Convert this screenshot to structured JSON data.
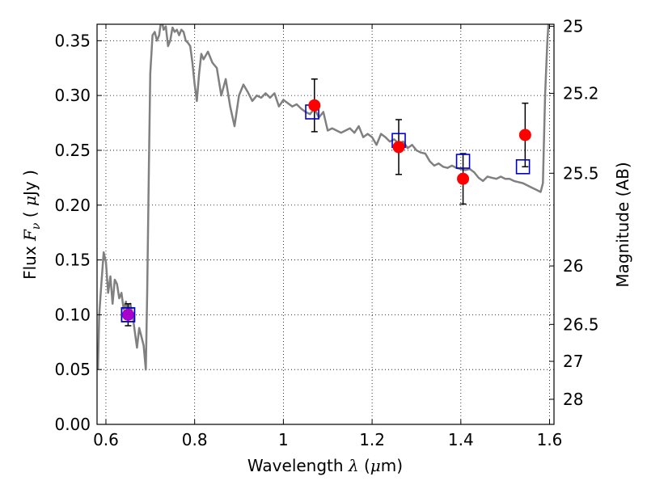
{
  "chart_data": {
    "type": "scatter",
    "xlabel": "Wavelength  λ (μm)",
    "xlabel_parts": {
      "pre": "Wavelength  ",
      "sym": "λ",
      "post": " (",
      "mu": "μ",
      "unit": "m)"
    },
    "ylabel": "Flux  Fν  ( μJy )",
    "ylabel_parts": {
      "pre": "Flux  ",
      "sym": "F",
      "sub": "ν",
      "mid": "  ( ",
      "mu": "μ",
      "unit": "Jy )"
    },
    "y2label": "Magnitude (AB)",
    "xlim": [
      0.58,
      1.61
    ],
    "ylim": [
      0.0,
      0.365
    ],
    "xticks": [
      0.6,
      0.8,
      1.0,
      1.2,
      1.4,
      1.6
    ],
    "xtick_labels": [
      "0.6",
      "0.8",
      "1",
      "1.2",
      "1.4",
      "1.6"
    ],
    "yticks": [
      0.0,
      0.05,
      0.1,
      0.15,
      0.2,
      0.25,
      0.3,
      0.35
    ],
    "ytick_labels": [
      "0.00",
      "0.05",
      "0.10",
      "0.15",
      "0.20",
      "0.25",
      "0.30",
      "0.35"
    ],
    "y2ticks": [
      {
        "label": "25",
        "flux": 0.3631
      },
      {
        "label": "25.2",
        "flux": 0.302
      },
      {
        "label": "25.5",
        "flux": 0.2291
      },
      {
        "label": "26",
        "flux": 0.1445
      },
      {
        "label": "26.5",
        "flux": 0.0912
      },
      {
        "label": "27",
        "flux": 0.0575
      },
      {
        "label": "28",
        "flux": 0.0229
      }
    ],
    "grid": true,
    "grid_style": "dotted",
    "colors": {
      "model": "#808080",
      "observed": "#ff0000",
      "synthetic": "#0000cc",
      "blend": "#aa00cc",
      "errorbar": "#000000"
    },
    "model_sed": {
      "x": [
        0.582,
        0.585,
        0.59,
        0.595,
        0.6,
        0.605,
        0.61,
        0.615,
        0.62,
        0.625,
        0.63,
        0.635,
        0.64,
        0.645,
        0.65,
        0.655,
        0.66,
        0.665,
        0.67,
        0.675,
        0.68,
        0.685,
        0.69,
        0.693,
        0.697,
        0.7,
        0.705,
        0.71,
        0.715,
        0.72,
        0.725,
        0.73,
        0.735,
        0.74,
        0.745,
        0.75,
        0.755,
        0.76,
        0.765,
        0.77,
        0.775,
        0.78,
        0.785,
        0.79,
        0.795,
        0.8,
        0.805,
        0.81,
        0.815,
        0.82,
        0.83,
        0.84,
        0.85,
        0.86,
        0.87,
        0.88,
        0.89,
        0.9,
        0.91,
        0.92,
        0.93,
        0.94,
        0.95,
        0.96,
        0.97,
        0.98,
        0.99,
        1.0,
        1.01,
        1.02,
        1.03,
        1.04,
        1.05,
        1.06,
        1.07,
        1.08,
        1.09,
        1.1,
        1.11,
        1.12,
        1.13,
        1.14,
        1.15,
        1.16,
        1.17,
        1.18,
        1.19,
        1.2,
        1.21,
        1.22,
        1.23,
        1.24,
        1.25,
        1.26,
        1.27,
        1.28,
        1.29,
        1.3,
        1.31,
        1.32,
        1.33,
        1.34,
        1.35,
        1.36,
        1.37,
        1.38,
        1.39,
        1.4,
        1.41,
        1.42,
        1.43,
        1.44,
        1.45,
        1.46,
        1.47,
        1.48,
        1.49,
        1.5,
        1.51,
        1.52,
        1.53,
        1.54,
        1.55,
        1.56,
        1.57,
        1.58,
        1.585,
        1.59,
        1.595,
        1.6
      ],
      "y": [
        0.05,
        0.1,
        0.13,
        0.157,
        0.148,
        0.12,
        0.135,
        0.11,
        0.132,
        0.128,
        0.115,
        0.12,
        0.105,
        0.112,
        0.095,
        0.11,
        0.1,
        0.085,
        0.07,
        0.088,
        0.08,
        0.072,
        0.05,
        0.12,
        0.24,
        0.32,
        0.355,
        0.358,
        0.35,
        0.355,
        0.37,
        0.36,
        0.363,
        0.345,
        0.35,
        0.362,
        0.358,
        0.36,
        0.355,
        0.36,
        0.358,
        0.35,
        0.348,
        0.345,
        0.33,
        0.31,
        0.295,
        0.32,
        0.338,
        0.333,
        0.34,
        0.33,
        0.325,
        0.3,
        0.315,
        0.29,
        0.272,
        0.3,
        0.31,
        0.303,
        0.295,
        0.3,
        0.298,
        0.302,
        0.298,
        0.302,
        0.29,
        0.296,
        0.293,
        0.29,
        0.292,
        0.288,
        0.285,
        0.283,
        0.288,
        0.28,
        0.285,
        0.268,
        0.27,
        0.268,
        0.266,
        0.268,
        0.27,
        0.266,
        0.272,
        0.262,
        0.265,
        0.262,
        0.255,
        0.265,
        0.262,
        0.258,
        0.26,
        0.256,
        0.258,
        0.252,
        0.255,
        0.25,
        0.248,
        0.247,
        0.24,
        0.236,
        0.238,
        0.235,
        0.234,
        0.236,
        0.234,
        0.233,
        0.232,
        0.233,
        0.23,
        0.225,
        0.222,
        0.226,
        0.225,
        0.224,
        0.226,
        0.224,
        0.224,
        0.222,
        0.221,
        0.22,
        0.218,
        0.216,
        0.214,
        0.212,
        0.22,
        0.3,
        0.35,
        0.38
      ]
    },
    "observed": [
      {
        "x": 0.65,
        "y": 0.1,
        "yerr": 0.01
      },
      {
        "x": 1.07,
        "y": 0.291,
        "yerr": 0.024
      },
      {
        "x": 1.26,
        "y": 0.253,
        "yerr": 0.025
      },
      {
        "x": 1.405,
        "y": 0.224,
        "yerr": 0.023
      },
      {
        "x": 1.545,
        "y": 0.264,
        "yerr": 0.029
      }
    ],
    "synthetic": [
      {
        "x": 0.65,
        "y": 0.1
      },
      {
        "x": 1.065,
        "y": 0.285
      },
      {
        "x": 1.26,
        "y": 0.259
      },
      {
        "x": 1.405,
        "y": 0.24
      },
      {
        "x": 1.54,
        "y": 0.235
      }
    ]
  }
}
